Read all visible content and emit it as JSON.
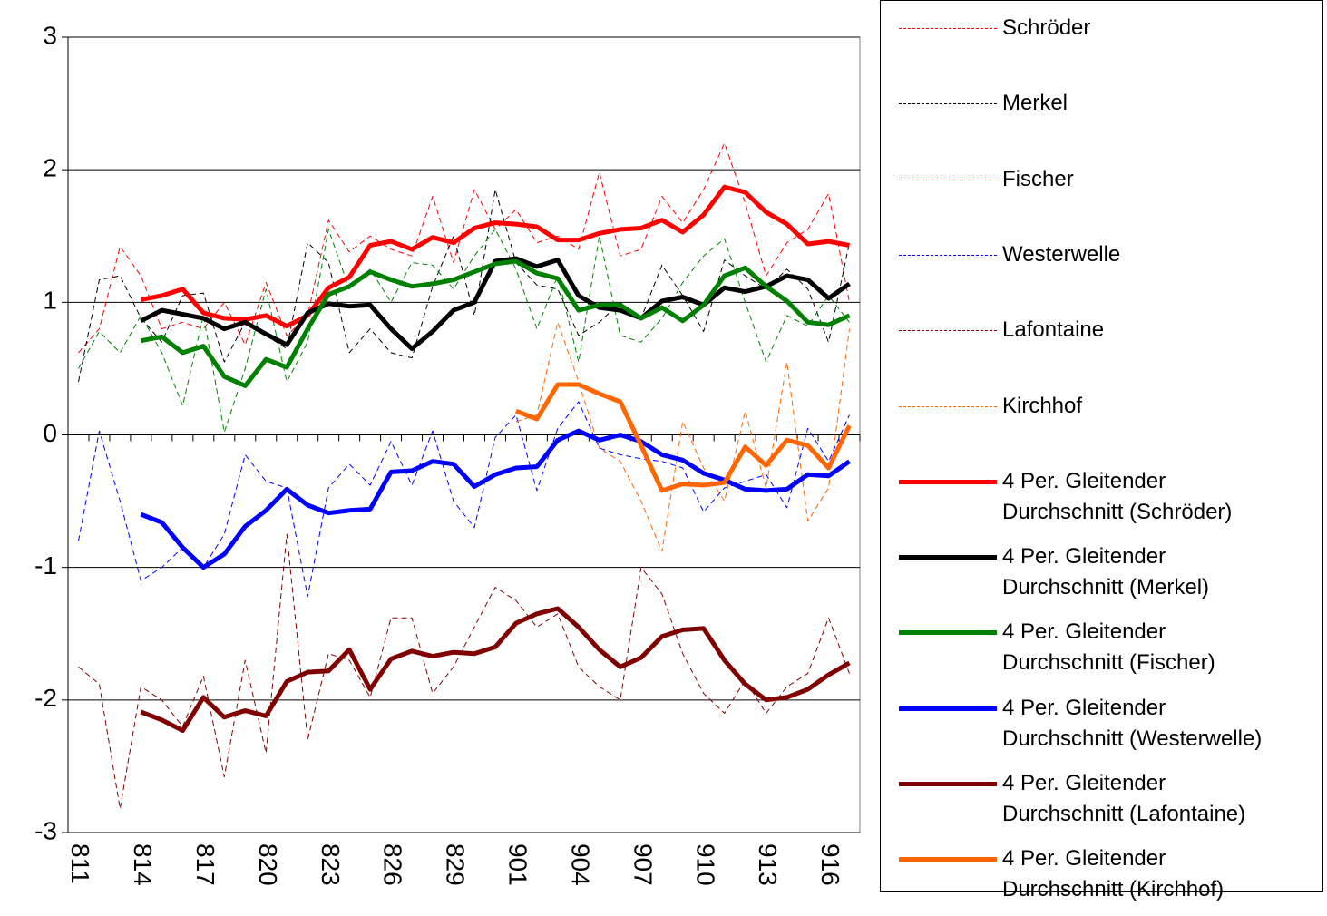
{
  "chart_data": {
    "type": "line",
    "categories": [
      "811",
      null,
      null,
      "814",
      null,
      null,
      "817",
      null,
      null,
      "820",
      null,
      null,
      "823",
      null,
      null,
      "826",
      null,
      null,
      "829",
      null,
      null,
      "901",
      null,
      null,
      "904",
      null,
      null,
      "907",
      null,
      null,
      "910",
      null,
      null,
      "913",
      null,
      null,
      "916",
      null
    ],
    "ylim": [
      -3,
      3
    ],
    "yticks": [
      -3,
      -2,
      -1,
      0,
      1,
      2,
      3
    ],
    "grid": true,
    "series": [
      {
        "name": "Schröder",
        "color": "#ff0000",
        "style": "dashed",
        "values": [
          0.62,
          0.8,
          1.42,
          1.2,
          0.8,
          0.85,
          0.8,
          1.0,
          0.68,
          1.15,
          0.75,
          0.9,
          1.62,
          1.38,
          1.5,
          1.4,
          1.35,
          1.8,
          1.3,
          1.85,
          1.55,
          1.7,
          1.45,
          1.5,
          1.4,
          1.98,
          1.35,
          1.4,
          1.8,
          1.6,
          1.85,
          2.2,
          1.75,
          1.2,
          1.45,
          1.55,
          1.82,
          1.0
        ]
      },
      {
        "name": "Merkel",
        "color": "#000000",
        "style": "dashed",
        "values": [
          0.4,
          1.17,
          1.2,
          0.88,
          0.7,
          1.05,
          1.07,
          0.55,
          0.85,
          0.75,
          0.65,
          1.45,
          1.3,
          0.62,
          0.8,
          0.62,
          0.58,
          1.12,
          1.5,
          0.9,
          1.85,
          1.3,
          1.13,
          1.1,
          0.75,
          0.85,
          1.0,
          0.88,
          1.28,
          1.05,
          0.78,
          1.32,
          1.2,
          1.1,
          1.25,
          1.1,
          0.7,
          1.45
        ]
      },
      {
        "name": "Fischer",
        "color": "#008000",
        "style": "dashed",
        "values": [
          0.5,
          0.78,
          0.62,
          0.9,
          0.62,
          0.22,
          0.9,
          0.02,
          0.5,
          1.1,
          0.4,
          0.7,
          1.55,
          1.1,
          1.25,
          1.0,
          1.3,
          1.28,
          1.1,
          1.35,
          1.55,
          1.25,
          0.8,
          1.2,
          0.55,
          1.5,
          0.75,
          0.7,
          0.88,
          1.15,
          1.35,
          1.48,
          1.0,
          0.55,
          0.9,
          0.82,
          1.05,
          0.85
        ]
      },
      {
        "name": "Westerwelle",
        "color": "#0000ff",
        "style": "dashed",
        "values": [
          -0.8,
          0.03,
          -0.5,
          -1.1,
          -1.0,
          -0.85,
          -1.0,
          -0.75,
          -0.15,
          -0.35,
          -0.4,
          -1.22,
          -0.4,
          -0.22,
          -0.38,
          -0.05,
          -0.38,
          0.03,
          -0.5,
          -0.7,
          -0.02,
          0.15,
          -0.42,
          0.05,
          0.25,
          -0.1,
          -0.15,
          -0.18,
          -0.2,
          -0.25,
          -0.58,
          -0.4,
          -0.35,
          -0.3,
          -0.55,
          0.05,
          -0.2,
          0.15
        ]
      },
      {
        "name": "Lafontaine",
        "color": "#800000",
        "style": "dashed",
        "values": [
          -1.75,
          -1.88,
          -2.82,
          -1.9,
          -2.0,
          -2.2,
          -1.82,
          -2.58,
          -1.7,
          -2.4,
          -0.75,
          -2.3,
          -1.65,
          -1.7,
          -1.98,
          -1.38,
          -1.38,
          -1.95,
          -1.75,
          -1.45,
          -1.15,
          -1.25,
          -1.45,
          -1.35,
          -1.75,
          -1.9,
          -2.0,
          -1.0,
          -1.2,
          -1.65,
          -1.95,
          -2.1,
          -1.85,
          -2.1,
          -1.9,
          -1.8,
          -1.38,
          -1.8
        ]
      },
      {
        "name": "Kirchhof",
        "color": "#ff6600",
        "style": "dashed",
        "values": [
          null,
          null,
          null,
          null,
          null,
          null,
          null,
          null,
          null,
          null,
          null,
          null,
          null,
          null,
          null,
          null,
          null,
          null,
          null,
          null,
          null,
          0.1,
          0.15,
          0.85,
          0.4,
          -0.1,
          -0.2,
          -0.5,
          -0.88,
          0.1,
          -0.25,
          -0.5,
          0.18,
          -0.4,
          0.55,
          -0.65,
          -0.4,
          0.8
        ]
      },
      {
        "name": "4 Per. Gleitender\nDurchschnitt (Schröder)",
        "color": "#ff0000",
        "style": "solid",
        "values": [
          null,
          null,
          null,
          1.02,
          1.05,
          1.1,
          0.92,
          0.88,
          0.87,
          0.9,
          0.82,
          0.9,
          1.11,
          1.19,
          1.43,
          1.46,
          1.4,
          1.49,
          1.45,
          1.56,
          1.6,
          1.59,
          1.57,
          1.47,
          1.47,
          1.52,
          1.55,
          1.56,
          1.62,
          1.53,
          1.66,
          1.87,
          1.83,
          1.68,
          1.59,
          1.44,
          1.46,
          1.43
        ]
      },
      {
        "name": "4 Per. Gleitender\nDurchschnitt (Merkel)",
        "color": "#000000",
        "style": "solid",
        "values": [
          null,
          null,
          null,
          0.86,
          0.94,
          0.91,
          0.88,
          0.8,
          0.85,
          0.76,
          0.68,
          0.92,
          0.99,
          0.97,
          0.98,
          0.8,
          0.65,
          0.78,
          0.94,
          1.0,
          1.31,
          1.33,
          1.27,
          1.32,
          1.05,
          0.96,
          0.94,
          0.88,
          1.01,
          1.04,
          0.98,
          1.11,
          1.08,
          1.12,
          1.2,
          1.17,
          1.03,
          1.14
        ]
      },
      {
        "name": "4 Per. Gleitender\nDurchschnitt (Fischer)",
        "color": "#008000",
        "style": "solid",
        "values": [
          null,
          null,
          null,
          0.71,
          0.74,
          0.62,
          0.67,
          0.44,
          0.37,
          0.57,
          0.51,
          0.8,
          1.06,
          1.12,
          1.23,
          1.17,
          1.12,
          1.14,
          1.17,
          1.23,
          1.29,
          1.31,
          1.22,
          1.18,
          0.94,
          0.98,
          0.98,
          0.88,
          0.96,
          0.86,
          0.98,
          1.2,
          1.26,
          1.12,
          1.01,
          0.85,
          0.83,
          0.9
        ]
      },
      {
        "name": "4 Per. Gleitender\nDurchschnitt (Westerwelle)",
        "color": "#0000ff",
        "style": "solid",
        "values": [
          null,
          null,
          null,
          -0.6,
          -0.66,
          -0.85,
          -1.0,
          -0.9,
          -0.69,
          -0.57,
          -0.41,
          -0.53,
          -0.59,
          -0.57,
          -0.56,
          -0.28,
          -0.27,
          -0.2,
          -0.22,
          -0.39,
          -0.3,
          -0.25,
          -0.24,
          -0.04,
          0.03,
          -0.04,
          0.0,
          -0.05,
          -0.15,
          -0.19,
          -0.29,
          -0.34,
          -0.41,
          -0.42,
          -0.41,
          -0.3,
          -0.31,
          -0.2
        ]
      },
      {
        "name": "4 Per. Gleitender\nDurchschnitt (Lafontaine)",
        "color": "#800000",
        "style": "solid",
        "values": [
          null,
          null,
          null,
          -2.09,
          -2.15,
          -2.23,
          -1.98,
          -2.13,
          -2.08,
          -2.12,
          -1.86,
          -1.79,
          -1.78,
          -1.62,
          -1.92,
          -1.69,
          -1.63,
          -1.67,
          -1.64,
          -1.65,
          -1.6,
          -1.42,
          -1.35,
          -1.31,
          -1.45,
          -1.62,
          -1.75,
          -1.68,
          -1.52,
          -1.47,
          -1.46,
          -1.7,
          -1.88,
          -2.0,
          -1.98,
          -1.92,
          -1.81,
          -1.72
        ]
      },
      {
        "name": "4 Per. Gleitender\nDurchschnitt (Kirchhof)",
        "color": "#ff6600",
        "style": "solid",
        "values": [
          null,
          null,
          null,
          null,
          null,
          null,
          null,
          null,
          null,
          null,
          null,
          null,
          null,
          null,
          null,
          null,
          null,
          null,
          null,
          null,
          null,
          0.18,
          0.12,
          0.38,
          0.38,
          0.31,
          0.25,
          -0.08,
          -0.42,
          -0.37,
          -0.38,
          -0.36,
          -0.09,
          -0.23,
          -0.04,
          -0.08,
          -0.25,
          0.07
        ]
      }
    ]
  }
}
